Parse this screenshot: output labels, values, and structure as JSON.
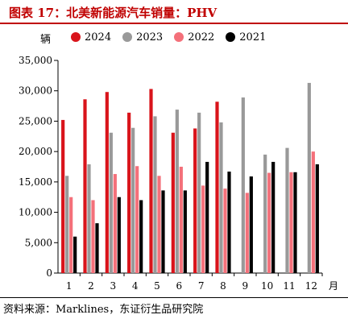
{
  "figure": {
    "title": "图表 17：北美新能源汽车销量：PHV",
    "source": "资料来源：Marklines，东证衍生品研究院"
  },
  "chart_data": {
    "type": "bar",
    "ylabel": "辆",
    "xunit": "月",
    "categories": [
      "1",
      "2",
      "3",
      "4",
      "5",
      "6",
      "7",
      "8",
      "9",
      "10",
      "11",
      "12"
    ],
    "ylim": [
      0,
      35000
    ],
    "yticks": [
      "0",
      "5,000",
      "10,000",
      "15,000",
      "20,000",
      "25,000",
      "30,000",
      "35,000"
    ],
    "ytick_values": [
      0,
      5000,
      10000,
      15000,
      20000,
      25000,
      30000,
      35000
    ],
    "grid": false,
    "legend_position": "top",
    "series": [
      {
        "name": "2024",
        "color": "#d9141b",
        "values": [
          25200,
          28600,
          29800,
          26400,
          30300,
          23100,
          23800,
          28200,
          null,
          null,
          null,
          null
        ]
      },
      {
        "name": "2023",
        "color": "#999999",
        "values": [
          16000,
          17900,
          23100,
          23900,
          25800,
          26900,
          26400,
          24800,
          28900,
          19500,
          20600,
          31300
        ]
      },
      {
        "name": "2022",
        "color": "#f4707a",
        "values": [
          12500,
          12000,
          16300,
          17600,
          16000,
          17500,
          14400,
          13900,
          13200,
          16500,
          16600,
          20000
        ]
      },
      {
        "name": "2021",
        "color": "#000000",
        "values": [
          6000,
          8200,
          12500,
          12000,
          13600,
          13600,
          18300,
          16700,
          15900,
          18300,
          16600,
          17900
        ]
      }
    ]
  }
}
